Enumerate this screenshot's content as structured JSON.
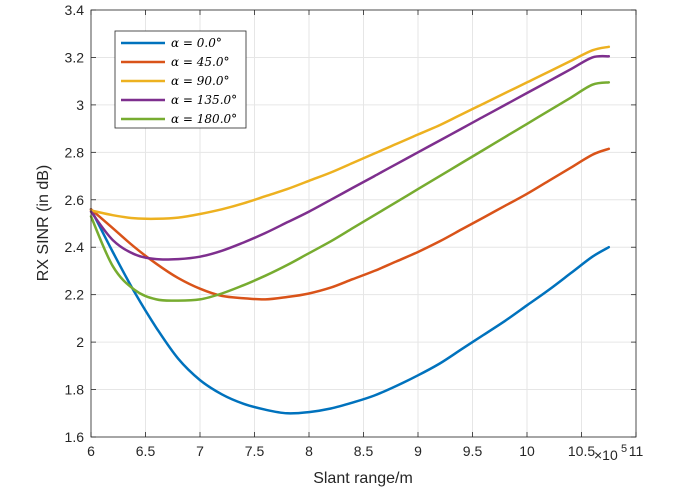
{
  "chart_data": {
    "type": "line",
    "title": "",
    "xlabel": "Slant range/m",
    "ylabel": "RX SINR (in dB)",
    "x_exponent_multiplier": "×10",
    "x_exponent_power": "5",
    "xlim": [
      6,
      11
    ],
    "ylim": [
      1.6,
      3.4
    ],
    "xticks": [
      6,
      6.5,
      7,
      7.5,
      8,
      8.5,
      9,
      9.5,
      10,
      10.5,
      11
    ],
    "xtick_labels": [
      "6",
      "6.5",
      "7",
      "7.5",
      "8",
      "8.5",
      "9",
      "9.5",
      "10",
      "10.5",
      "11"
    ],
    "yticks": [
      1.6,
      1.8,
      2,
      2.2,
      2.4,
      2.6,
      2.8,
      3,
      3.2,
      3.4
    ],
    "ytick_labels": [
      "1.6",
      "1.8",
      "2",
      "2.2",
      "2.4",
      "2.6",
      "2.8",
      "3",
      "3.2",
      "3.4"
    ],
    "grid": true,
    "legend_position": "top-left",
    "x": [
      6.0,
      6.2,
      6.4,
      6.6,
      6.8,
      7.0,
      7.2,
      7.4,
      7.6,
      7.8,
      8.0,
      8.2,
      8.4,
      8.6,
      8.8,
      9.0,
      9.2,
      9.4,
      9.6,
      9.8,
      10.0,
      10.2,
      10.4,
      10.6,
      10.75
    ],
    "series": [
      {
        "name": "α = 0.0°",
        "color": "#0072BD",
        "values": [
          2.56,
          2.38,
          2.21,
          2.06,
          1.93,
          1.84,
          1.78,
          1.74,
          1.715,
          1.7,
          1.705,
          1.72,
          1.745,
          1.775,
          1.815,
          1.86,
          1.91,
          1.97,
          2.03,
          2.09,
          2.155,
          2.22,
          2.29,
          2.36,
          2.4
        ]
      },
      {
        "name": "α = 45.0°",
        "color": "#D95319",
        "values": [
          2.56,
          2.48,
          2.4,
          2.33,
          2.27,
          2.225,
          2.195,
          2.185,
          2.18,
          2.19,
          2.205,
          2.23,
          2.265,
          2.3,
          2.34,
          2.38,
          2.425,
          2.475,
          2.525,
          2.575,
          2.625,
          2.68,
          2.735,
          2.79,
          2.815
        ]
      },
      {
        "name": "α = 90.0°",
        "color": "#EDB120",
        "values": [
          2.555,
          2.535,
          2.522,
          2.52,
          2.525,
          2.54,
          2.56,
          2.585,
          2.615,
          2.645,
          2.68,
          2.715,
          2.755,
          2.795,
          2.835,
          2.875,
          2.915,
          2.96,
          3.005,
          3.05,
          3.095,
          3.14,
          3.185,
          3.23,
          3.245
        ]
      },
      {
        "name": "α = 135.0°",
        "color": "#7E2F8E",
        "values": [
          2.55,
          2.43,
          2.37,
          2.35,
          2.35,
          2.36,
          2.385,
          2.42,
          2.46,
          2.505,
          2.55,
          2.6,
          2.65,
          2.7,
          2.75,
          2.8,
          2.85,
          2.9,
          2.95,
          3.0,
          3.05,
          3.1,
          3.15,
          3.2,
          3.205
        ]
      },
      {
        "name": "α = 180.0°",
        "color": "#77AC30",
        "values": [
          2.53,
          2.32,
          2.22,
          2.18,
          2.175,
          2.18,
          2.205,
          2.24,
          2.28,
          2.325,
          2.375,
          2.425,
          2.48,
          2.535,
          2.59,
          2.645,
          2.7,
          2.755,
          2.81,
          2.865,
          2.92,
          2.975,
          3.03,
          3.085,
          3.095
        ]
      }
    ]
  }
}
